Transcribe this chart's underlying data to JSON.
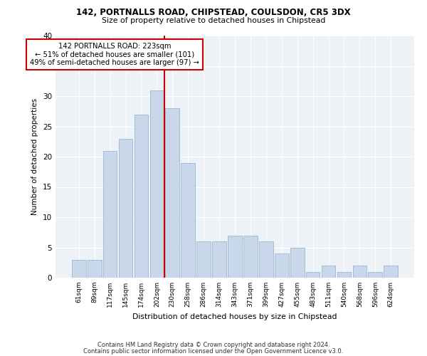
{
  "title1": "142, PORTNALLS ROAD, CHIPSTEAD, COULSDON, CR5 3DX",
  "title2": "Size of property relative to detached houses in Chipstead",
  "xlabel": "Distribution of detached houses by size in Chipstead",
  "ylabel": "Number of detached properties",
  "bin_labels": [
    "61sqm",
    "89sqm",
    "117sqm",
    "145sqm",
    "174sqm",
    "202sqm",
    "230sqm",
    "258sqm",
    "286sqm",
    "314sqm",
    "343sqm",
    "371sqm",
    "399sqm",
    "427sqm",
    "455sqm",
    "483sqm",
    "511sqm",
    "540sqm",
    "568sqm",
    "596sqm",
    "624sqm"
  ],
  "bar_values": [
    3,
    3,
    21,
    23,
    27,
    31,
    28,
    19,
    6,
    6,
    7,
    7,
    6,
    4,
    5,
    1,
    2,
    1,
    2,
    1,
    2
  ],
  "bar_color": "#c8d8ea",
  "bar_edge_color": "#9ab8cc",
  "vline_color": "#cc0000",
  "vline_x": 5.5,
  "annotation_text": "142 PORTNALLS ROAD: 223sqm\n← 51% of detached houses are smaller (101)\n49% of semi-detached houses are larger (97) →",
  "annotation_box_color": "#cc0000",
  "footer1": "Contains HM Land Registry data © Crown copyright and database right 2024.",
  "footer2": "Contains public sector information licensed under the Open Government Licence v3.0.",
  "ylim": [
    0,
    40
  ],
  "yticks": [
    0,
    5,
    10,
    15,
    20,
    25,
    30,
    35,
    40
  ],
  "background_color": "#edf2f7",
  "grid_color": "#ffffff"
}
